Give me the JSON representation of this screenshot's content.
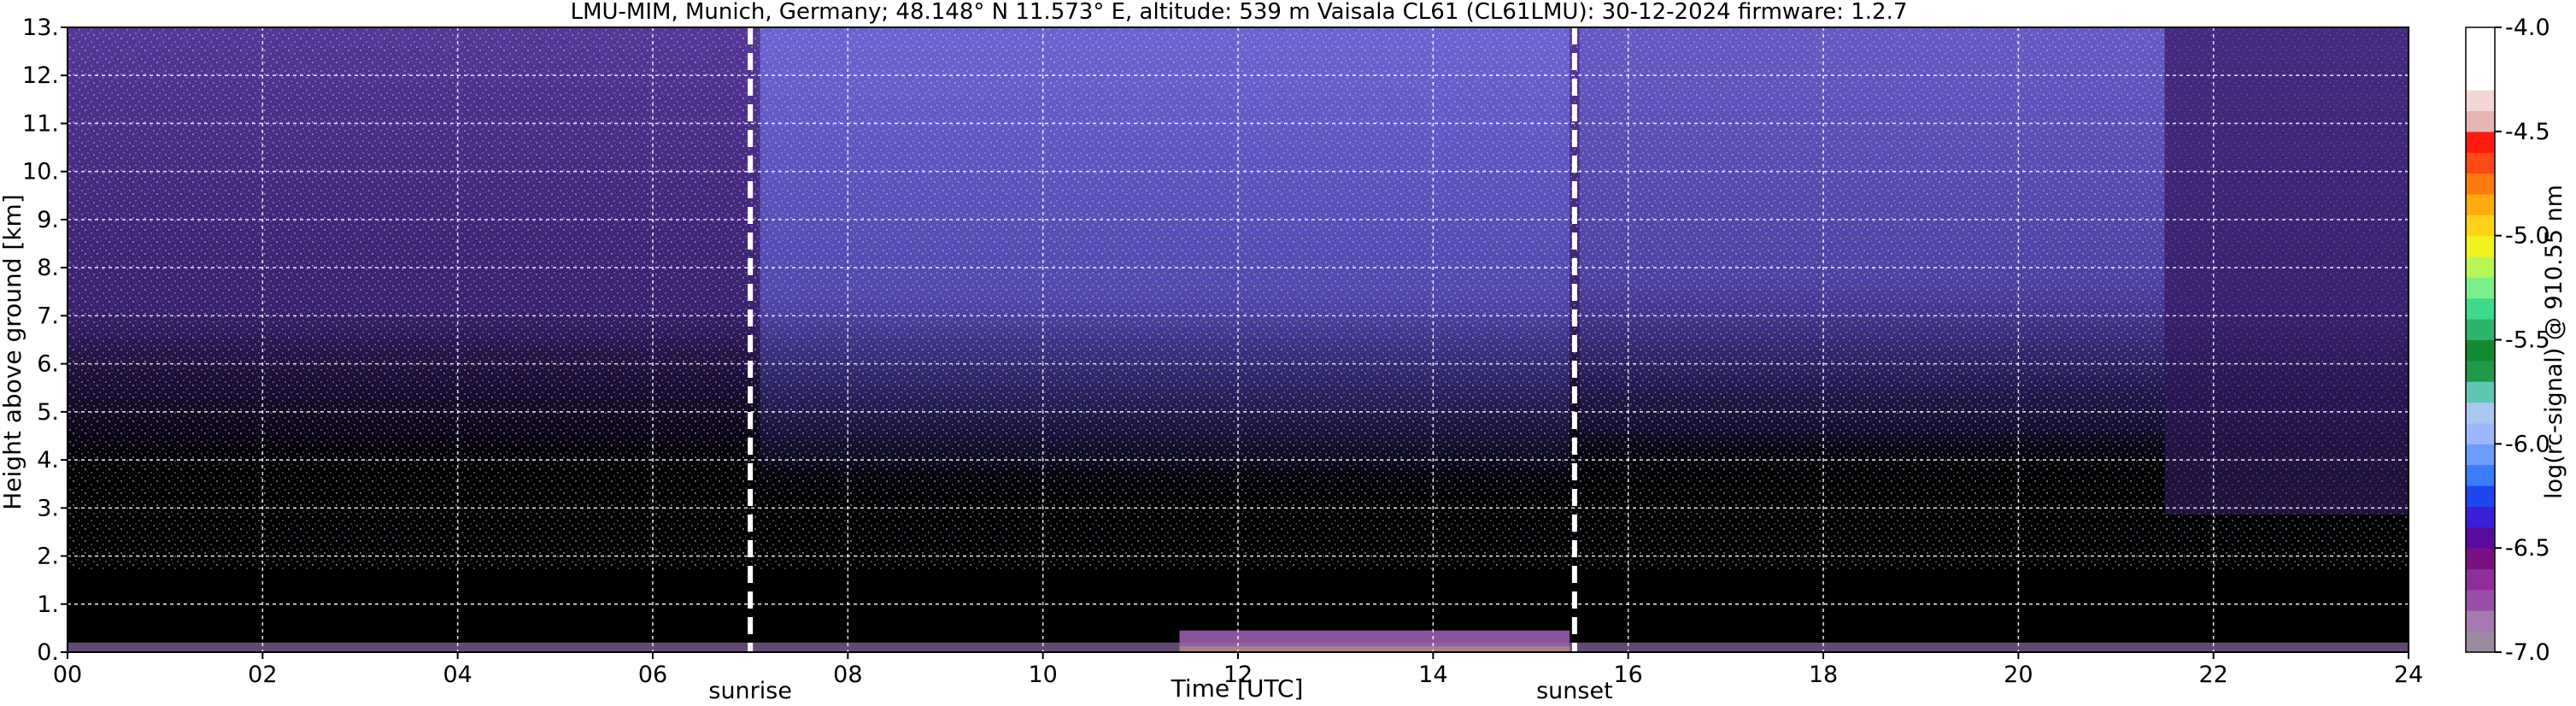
{
  "chart_data": {
    "type": "heatmap",
    "title": "LMU-MIM, Munich, Germany; 48.148° N 11.573° E, altitude: 539 m    Vaisala CL61 (CL61LMU): 30-12-2024    firmware: 1.2.7",
    "xlabel": "Time [UTC]",
    "ylabel": "Height above ground [km]",
    "xlim": [
      0,
      24
    ],
    "ylim": [
      0,
      13
    ],
    "x_ticks": [
      0,
      2,
      4,
      6,
      8,
      10,
      12,
      14,
      16,
      18,
      20,
      22,
      24
    ],
    "x_tick_labels": [
      "00",
      "02",
      "04",
      "06",
      "08",
      "10",
      "12",
      "14",
      "16",
      "18",
      "20",
      "22",
      "24"
    ],
    "y_ticks": [
      0,
      1,
      2,
      3,
      4,
      5,
      6,
      7,
      8,
      9,
      10,
      11,
      12,
      13
    ],
    "y_tick_labels": [
      "0.",
      "1.",
      "2.",
      "3.",
      "4.",
      "5.",
      "6.",
      "7.",
      "8.",
      "9.",
      "10.",
      "11.",
      "12.",
      "13."
    ],
    "grid": true,
    "background_color": "#000000",
    "events": [
      {
        "name": "sunrise",
        "time": 7.0
      },
      {
        "name": "sunset",
        "time": 15.45
      }
    ],
    "colorbar": {
      "label": "log(rc-signal) @ 910.55 nm",
      "range": [
        -7.0,
        -4.0
      ],
      "ticks": [
        -7.0,
        -6.5,
        -6.0,
        -5.5,
        -5.0,
        -4.5,
        -4.0
      ],
      "tick_labels": [
        "-7.0",
        "-6.5",
        "-6.0",
        "-5.5",
        "-5.0",
        "-4.5",
        "-4.0"
      ],
      "levels": [
        {
          "value": -7.0,
          "color": "#9b8ba1"
        },
        {
          "value": -6.9,
          "color": "#a679b2"
        },
        {
          "value": -6.8,
          "color": "#9a4ea8"
        },
        {
          "value": -6.7,
          "color": "#8f2e9a"
        },
        {
          "value": -6.6,
          "color": "#7a1080"
        },
        {
          "value": -6.5,
          "color": "#5a0a9c"
        },
        {
          "value": -6.4,
          "color": "#3a1fd6"
        },
        {
          "value": -6.3,
          "color": "#1f45f0"
        },
        {
          "value": -6.2,
          "color": "#3a7cff"
        },
        {
          "value": -6.1,
          "color": "#6d9cff"
        },
        {
          "value": -6.0,
          "color": "#9ab8ff"
        },
        {
          "value": -5.9,
          "color": "#a8c8f0"
        },
        {
          "value": -5.8,
          "color": "#5fc6b4"
        },
        {
          "value": -5.7,
          "color": "#1d9a4a"
        },
        {
          "value": -5.6,
          "color": "#128a2e"
        },
        {
          "value": -5.5,
          "color": "#2bb56a"
        },
        {
          "value": -5.4,
          "color": "#3fd98c"
        },
        {
          "value": -5.3,
          "color": "#7aef8e"
        },
        {
          "value": -5.2,
          "color": "#b8f558"
        },
        {
          "value": -5.1,
          "color": "#f2f21f"
        },
        {
          "value": -5.0,
          "color": "#ffd21a"
        },
        {
          "value": -4.9,
          "color": "#ffaa0d"
        },
        {
          "value": -4.8,
          "color": "#ff7a0f"
        },
        {
          "value": -4.7,
          "color": "#ff4a14"
        },
        {
          "value": -4.6,
          "color": "#ff1a0d"
        },
        {
          "value": -4.5,
          "color": "#e8b4b4"
        },
        {
          "value": -4.4,
          "color": "#f2d6d6"
        },
        {
          "value": -4.3,
          "color": "#ffffff"
        }
      ]
    }
  }
}
